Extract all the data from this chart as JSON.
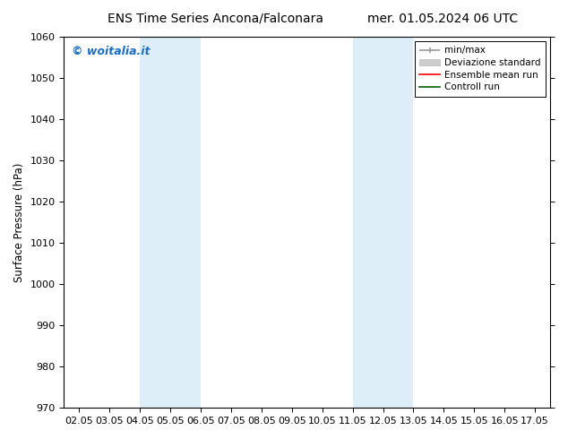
{
  "title_left": "ENS Time Series Ancona/Falconara",
  "title_right": "mer. 01.05.2024 06 UTC",
  "ylabel": "Surface Pressure (hPa)",
  "ylim": [
    970,
    1060
  ],
  "yticks": [
    970,
    980,
    990,
    1000,
    1010,
    1020,
    1030,
    1040,
    1050,
    1060
  ],
  "xtick_labels": [
    "02.05",
    "03.05",
    "04.05",
    "05.05",
    "06.05",
    "07.05",
    "08.05",
    "09.05",
    "10.05",
    "11.05",
    "12.05",
    "13.05",
    "14.05",
    "15.05",
    "16.05",
    "17.05"
  ],
  "xtick_positions": [
    0,
    1,
    2,
    3,
    4,
    5,
    6,
    7,
    8,
    9,
    10,
    11,
    12,
    13,
    14,
    15
  ],
  "shaded_regions": [
    {
      "x_start": 2,
      "x_end": 3,
      "color": "#ddeef9"
    },
    {
      "x_start": 3,
      "x_end": 4,
      "color": "#ddeef9"
    },
    {
      "x_start": 9,
      "x_end": 10,
      "color": "#ddeef9"
    },
    {
      "x_start": 10,
      "x_end": 11,
      "color": "#ddeef9"
    }
  ],
  "watermark_text": "© woitalia.it",
  "watermark_color": "#1a6fc4",
  "bg_color": "#ffffff",
  "title_fontsize": 10,
  "tick_fontsize": 8,
  "ylabel_fontsize": 8.5,
  "legend_fontsize": 7.5
}
